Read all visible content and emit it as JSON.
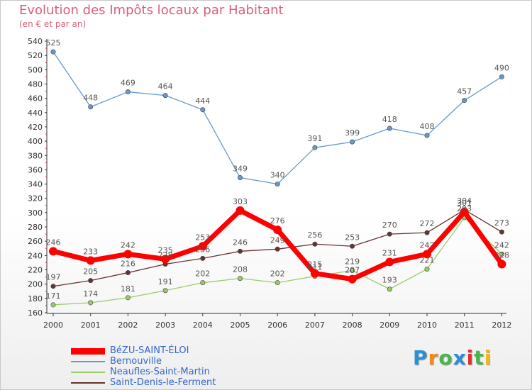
{
  "chart_data": {
    "type": "line",
    "title": "Evolution des Impôts locaux par Habitant",
    "subtitle": "(en € et par an)",
    "categories": [
      "2000",
      "2001",
      "2002",
      "2003",
      "2004",
      "2005",
      "2006",
      "2007",
      "2008",
      "2009",
      "2010",
      "2011",
      "2012"
    ],
    "ylim": [
      160,
      540
    ],
    "ytick_step": 20,
    "grid": false,
    "legend_position": "bottom-left",
    "series": [
      {
        "name": "BéZU-SAINT-ÉLOI",
        "color": "#ff0000",
        "values": [
          246,
          233,
          242,
          235,
          253,
          303,
          276,
          215,
          207,
          231,
          242,
          301,
          228
        ],
        "labels": [
          "246",
          "233",
          "242",
          "235",
          "253",
          "303",
          "276",
          "215",
          "207",
          "231",
          "242",
          "301",
          "228"
        ]
      },
      {
        "name": "Bernouville",
        "color": "#6699cc",
        "values": [
          525,
          448,
          469,
          464,
          444,
          349,
          340,
          391,
          399,
          418,
          408,
          457,
          490
        ],
        "labels": [
          "525",
          "448",
          "469",
          "464",
          "444",
          "349",
          "340",
          "391",
          "399",
          "418",
          "408",
          "457",
          "490"
        ]
      },
      {
        "name": "Neaufles-Saint-Martin",
        "color": "#99cc66",
        "values": [
          171,
          174,
          181,
          191,
          202,
          208,
          202,
          211,
          219,
          193,
          221,
          293,
          242
        ],
        "labels": [
          "171",
          "174",
          "181",
          "191",
          "202",
          "208",
          "202",
          "211",
          "219",
          "193",
          "221",
          "293",
          "242"
        ]
      },
      {
        "name": "Saint-Denis-le-Ferment",
        "color": "#663333",
        "values": [
          197,
          205,
          216,
          228,
          236,
          246,
          249,
          256,
          253,
          270,
          272,
          304,
          273
        ],
        "labels": [
          "197",
          "205",
          "216",
          "228",
          "236",
          "246",
          "249",
          "256",
          "253",
          "270",
          "272",
          "304",
          "273"
        ]
      }
    ]
  },
  "brand": {
    "letters": [
      "P",
      "r",
      "o",
      "x",
      "i",
      "t",
      "i"
    ],
    "colors": [
      "#2b8fd6",
      "#f08a1c",
      "#4db34d",
      "#2b8fd6",
      "#e0312c",
      "#4db34d",
      "#f0b81c"
    ]
  }
}
